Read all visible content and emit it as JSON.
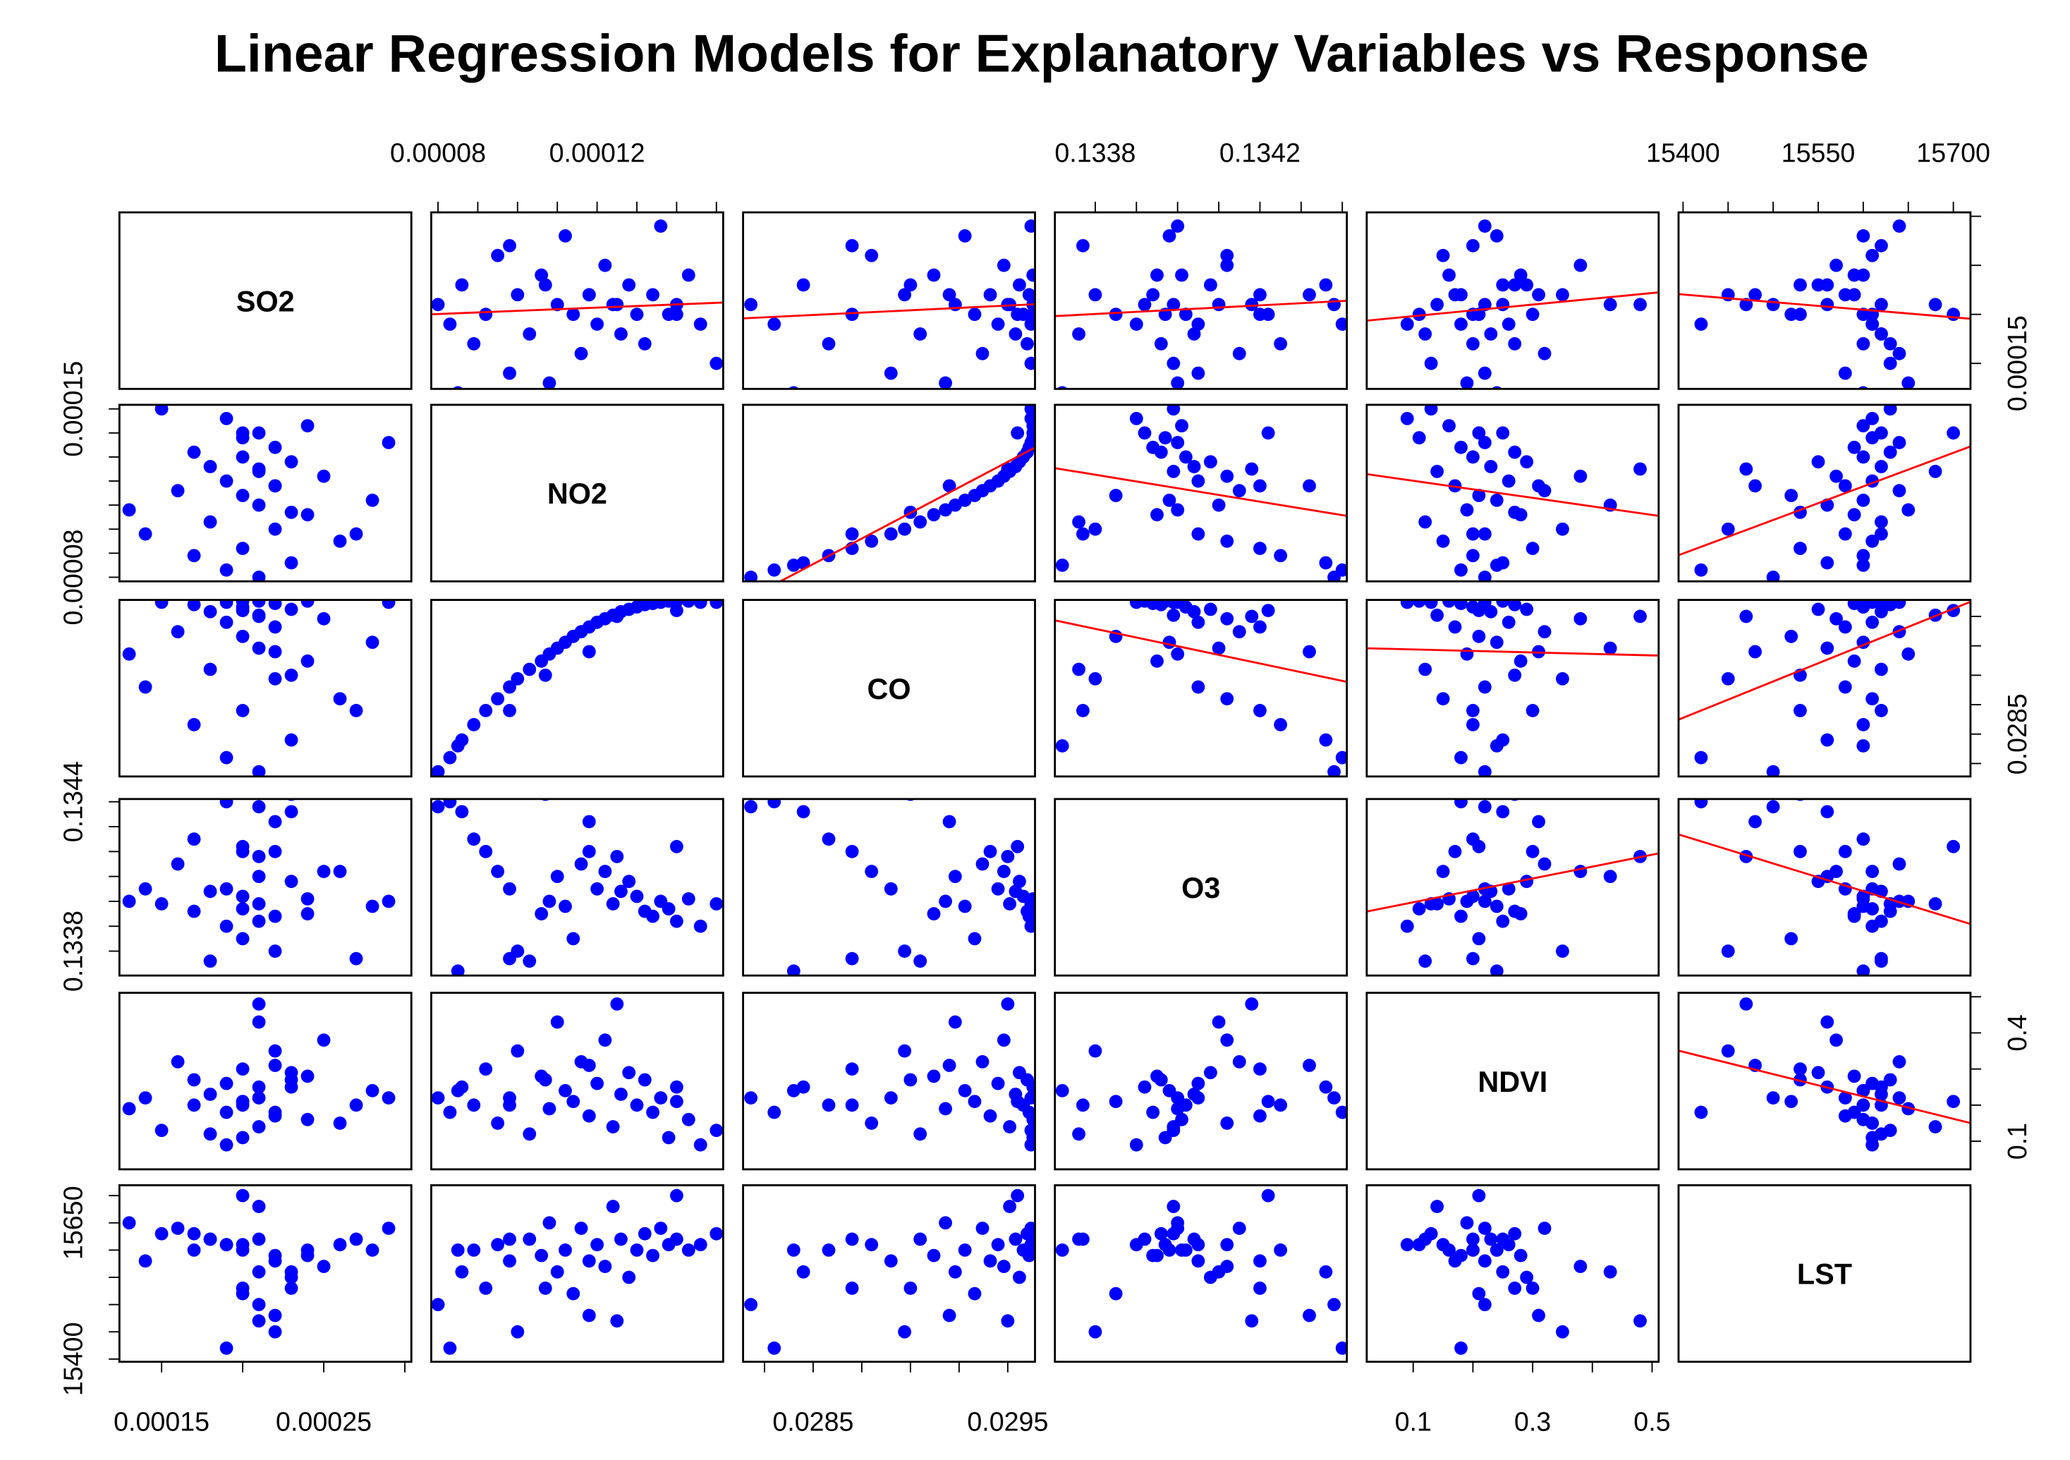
{
  "chart_data": {
    "type": "scatter_matrix",
    "title": "Linear Regression Models for Explanatory Variables vs Response",
    "point_color": "#0000ff",
    "fit_color": "#ff0000",
    "variables": [
      {
        "name": "SO2",
        "lim": [
          0.000124,
          0.000304
        ],
        "ticks": [
          0.00015,
          0.0002,
          0.00025,
          0.0003
        ],
        "h_labels": [
          {
            "value": 0.00015,
            "label": "0.00015"
          },
          {
            "value": 0.00025,
            "label": "0.00025"
          }
        ],
        "v_labels": [
          {
            "value": 0.00015,
            "label": "0.00015"
          }
        ]
      },
      {
        "name": "NO2",
        "lim": [
          7.83e-05,
          0.0001517
        ],
        "ticks": [
          8e-05,
          9e-05,
          0.0001,
          0.00011,
          0.00012,
          0.00013,
          0.00014,
          0.00015
        ],
        "h_labels": [
          {
            "value": 8e-05,
            "label": "0.00008"
          },
          {
            "value": 0.00012,
            "label": "0.00012"
          }
        ],
        "v_labels": [
          {
            "value": 8e-05,
            "label": "0.00008"
          },
          {
            "value": 0.00015,
            "label": "0.00015"
          }
        ]
      },
      {
        "name": "CO",
        "lim": [
          0.02814,
          0.02964
        ],
        "ticks": [
          0.02825,
          0.0285,
          0.02875,
          0.029,
          0.02925,
          0.0295
        ],
        "h_labels": [
          {
            "value": 0.0285,
            "label": "0.0285"
          },
          {
            "value": 0.0295,
            "label": "0.0295"
          }
        ],
        "v_labels": [
          {
            "value": 0.0285,
            "label": "0.0285"
          }
        ]
      },
      {
        "name": "O3",
        "lim": [
          0.133702,
          0.134411
        ],
        "ticks": [
          0.1338,
          0.1339,
          0.134,
          0.1341,
          0.1342,
          0.1343,
          0.1344
        ],
        "h_labels": [
          {
            "value": 0.1338,
            "label": "0.1338"
          },
          {
            "value": 0.1342,
            "label": "0.1342"
          }
        ],
        "v_labels": [
          {
            "value": 0.1338,
            "label": "0.1338"
          },
          {
            "value": 0.1344,
            "label": "0.1344"
          }
        ]
      },
      {
        "name": "NDVI",
        "lim": [
          0.0222,
          0.511
        ],
        "ticks": [
          0.1,
          0.2,
          0.3,
          0.4,
          0.5
        ],
        "h_labels": [
          {
            "value": 0.1,
            "label": "0.1"
          },
          {
            "value": 0.3,
            "label": "0.3"
          },
          {
            "value": 0.5,
            "label": "0.5"
          }
        ],
        "v_labels": [
          {
            "value": 0.1,
            "label": "0.1"
          },
          {
            "value": 0.4,
            "label": "0.4"
          }
        ]
      },
      {
        "name": "LST",
        "lim": [
          15395,
          15719
        ],
        "ticks": [
          15400,
          15450,
          15500,
          15550,
          15600,
          15650,
          15700
        ],
        "h_labels": [
          {
            "value": 15400,
            "label": "15400"
          },
          {
            "value": 15550,
            "label": "15550"
          },
          {
            "value": 15700,
            "label": "15700"
          }
        ],
        "v_labels": [
          {
            "value": 15400,
            "label": "15400"
          },
          {
            "value": 15650,
            "label": "15650"
          }
        ]
      }
    ],
    "observations": [
      [
        0.00021,
        8e-05,
        0.02818,
        0.13438,
        0.22,
        15500
      ],
      [
        0.00019,
        8.3e-05,
        0.0283,
        0.1344,
        0.18,
        15420
      ],
      [
        0.00023,
        8.6e-05,
        0.02845,
        0.13436,
        0.25,
        15560
      ],
      [
        0.00017,
        8.9e-05,
        0.02858,
        0.13425,
        0.2,
        15600
      ],
      [
        0.0002,
        9.2e-05,
        0.0287,
        0.1342,
        0.3,
        15530
      ],
      [
        0.00026,
        9.5e-05,
        0.0288,
        0.13412,
        0.15,
        15610
      ],
      [
        0.00014,
        9.8e-05,
        0.0289,
        0.13405,
        0.22,
        15580
      ],
      [
        0.00022,
        0.0001,
        0.02897,
        0.1338,
        0.35,
        15450
      ],
      [
        0.00018,
        0.000103,
        0.02905,
        0.13376,
        0.12,
        15620
      ],
      [
        0.00024,
        0.000106,
        0.02912,
        0.13395,
        0.28,
        15590
      ],
      [
        0.00013,
        0.000108,
        0.02918,
        0.134,
        0.19,
        15650
      ],
      [
        0.00021,
        0.00011,
        0.02923,
        0.1341,
        0.43,
        15560
      ],
      [
        0.00028,
        0.000112,
        0.02928,
        0.13398,
        0.24,
        15600
      ],
      [
        0.0002,
        0.000114,
        0.02933,
        0.13385,
        0.21,
        15520
      ],
      [
        0.00016,
        0.000116,
        0.02937,
        0.13415,
        0.32,
        15640
      ],
      [
        0.00022,
        0.000118,
        0.02941,
        0.1342,
        0.17,
        15580
      ],
      [
        0.00019,
        0.00012,
        0.02945,
        0.13405,
        0.26,
        15610
      ],
      [
        0.00025,
        0.000122,
        0.02948,
        0.13412,
        0.38,
        15570
      ],
      [
        0.00021,
        0.000124,
        0.02951,
        0.13399,
        0.14,
        15680
      ],
      [
        0.00018,
        0.000126,
        0.02954,
        0.13404,
        0.23,
        15620
      ],
      [
        0.00023,
        0.000128,
        0.02956,
        0.13408,
        0.29,
        15550
      ],
      [
        0.0002,
        0.00013,
        0.02958,
        0.13402,
        0.2,
        15600
      ],
      [
        0.00017,
        0.000132,
        0.0296,
        0.13396,
        0.27,
        15630
      ],
      [
        0.00022,
        0.000134,
        0.02961,
        0.13394,
        0.18,
        15590
      ],
      [
        0.00029,
        0.000136,
        0.02962,
        0.134,
        0.22,
        15640
      ],
      [
        0.0002,
        0.000138,
        0.02963,
        0.13397,
        0.11,
        15610
      ],
      [
        0.00021,
        0.00014,
        0.02963,
        0.13392,
        0.25,
        15620
      ],
      [
        0.00024,
        0.000143,
        0.02963,
        0.13401,
        0.16,
        15600
      ],
      [
        0.00019,
        0.000146,
        0.02962,
        0.1339,
        0.09,
        15610
      ],
      [
        0.00015,
        0.00015,
        0.02962,
        0.13399,
        0.13,
        15630
      ],
      [
        0.00022,
        0.000118,
        0.0292,
        0.13432,
        0.31,
        15480
      ],
      [
        0.00027,
        9.8e-05,
        0.0287,
        0.13377,
        0.2,
        15620
      ],
      [
        0.00012,
        8.5e-05,
        0.0284,
        0.13372,
        0.24,
        15600
      ],
      [
        0.0002,
        0.00014,
        0.02955,
        0.13422,
        0.21,
        15700
      ],
      [
        0.00023,
        0.000107,
        0.029,
        0.13443,
        0.27,
        15530
      ],
      [
        0.00021,
        0.000125,
        0.0295,
        0.13418,
        0.48,
        15470
      ]
    ]
  }
}
